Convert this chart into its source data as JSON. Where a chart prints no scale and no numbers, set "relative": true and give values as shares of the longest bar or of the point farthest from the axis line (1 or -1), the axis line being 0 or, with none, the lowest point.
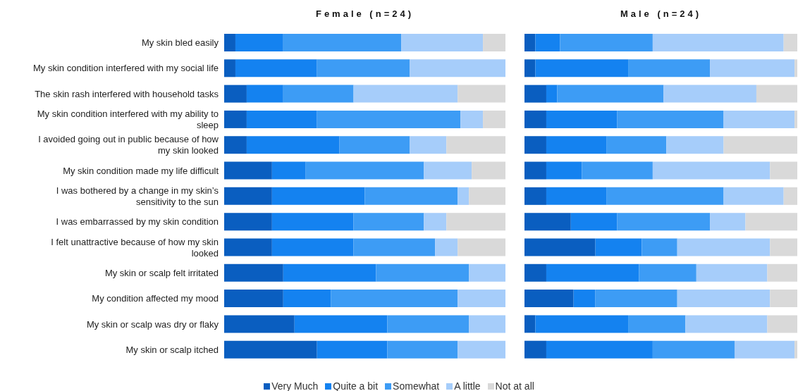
{
  "chart_data": [
    {
      "type": "bar",
      "orientation": "horizontal",
      "stacked": true,
      "relative": true,
      "title": "Female (n=24)",
      "tick_labels": "y",
      "legend": "bottom",
      "categories": [
        "My skin bled easily",
        "My skin condition interfered with my social life",
        "The skin rash interfered with household tasks",
        "My skin condition interfered with my ability to sleep",
        "I avoided going out in public because of how my skin looked",
        "My skin condition made my life difficult",
        "I was bothered by a change in my skin’s sensitivity to the sun",
        "I was embarrassed by my skin condition",
        "I felt unattractive because of how my skin looked",
        "My skin or scalp felt irritated",
        "My condition affected my mood",
        "My skin or scalp was dry or flaky",
        "My skin or scalp itched"
      ],
      "series": [
        {
          "name": "Very Much",
          "color": "#0a5ec0",
          "values": [
            0.04,
            0.04,
            0.08,
            0.08,
            0.08,
            0.17,
            0.17,
            0.17,
            0.17,
            0.21,
            0.21,
            0.25,
            0.33
          ]
        },
        {
          "name": "Quite a bit",
          "color": "#1482f0",
          "values": [
            0.17,
            0.29,
            0.13,
            0.25,
            0.33,
            0.12,
            0.33,
            0.29,
            0.29,
            0.33,
            0.17,
            0.33,
            0.25
          ]
        },
        {
          "name": "Somewhat",
          "color": "#3d9cf5",
          "values": [
            0.42,
            0.33,
            0.25,
            0.51,
            0.25,
            0.42,
            0.33,
            0.25,
            0.29,
            0.33,
            0.45,
            0.29,
            0.25
          ]
        },
        {
          "name": "A little",
          "color": "#a6cdfa",
          "values": [
            0.29,
            0.34,
            0.37,
            0.08,
            0.13,
            0.17,
            0.04,
            0.08,
            0.08,
            0.13,
            0.17,
            0.13,
            0.17
          ]
        },
        {
          "name": "Not at all",
          "color": "#d9d9d9",
          "values": [
            0.08,
            0,
            0.17,
            0.08,
            0.21,
            0.12,
            0.13,
            0.21,
            0.17,
            0,
            0,
            0,
            0
          ]
        }
      ]
    },
    {
      "type": "bar",
      "orientation": "horizontal",
      "stacked": true,
      "relative": true,
      "title": "Male (n=24)",
      "tick_labels": false,
      "legend": "bottom",
      "categories": [
        "My skin bled easily",
        "My skin condition interfered with my social life",
        "The skin rash interfered with household tasks",
        "My skin condition interfered with my ability to sleep",
        "I avoided going out in public because of how my skin looked",
        "My skin condition made my life difficult",
        "I was bothered by a change in my skin’s sensitivity to the sun",
        "I was embarrassed by my skin condition",
        "I felt unattractive because of how my skin looked",
        "My skin or scalp felt irritated",
        "My condition affected my mood",
        "My skin or scalp was dry or flaky",
        "My skin or scalp itched"
      ],
      "series": [
        {
          "name": "Very Much",
          "color": "#0a5ec0",
          "values": [
            0.04,
            0.04,
            0.08,
            0.08,
            0.08,
            0.08,
            0.08,
            0.17,
            0.26,
            0.08,
            0.18,
            0.04,
            0.08
          ]
        },
        {
          "name": "Quite a bit",
          "color": "#1482f0",
          "values": [
            0.09,
            0.34,
            0.04,
            0.26,
            0.22,
            0.13,
            0.22,
            0.17,
            0.17,
            0.34,
            0.08,
            0.34,
            0.39
          ]
        },
        {
          "name": "Somewhat",
          "color": "#3d9cf5",
          "values": [
            0.34,
            0.3,
            0.39,
            0.39,
            0.22,
            0.26,
            0.43,
            0.34,
            0.13,
            0.21,
            0.3,
            0.21,
            0.3
          ]
        },
        {
          "name": "A little",
          "color": "#a6cdfa",
          "values": [
            0.48,
            0.31,
            0.34,
            0.26,
            0.21,
            0.43,
            0.22,
            0.13,
            0.34,
            0.26,
            0.34,
            0.3,
            0.22
          ]
        },
        {
          "name": "Not at all",
          "color": "#d9d9d9",
          "values": [
            0.05,
            0.01,
            0.15,
            0.01,
            0.27,
            0.1,
            0.05,
            0.19,
            0.1,
            0.11,
            0.1,
            0.11,
            0.01
          ]
        }
      ]
    }
  ]
}
